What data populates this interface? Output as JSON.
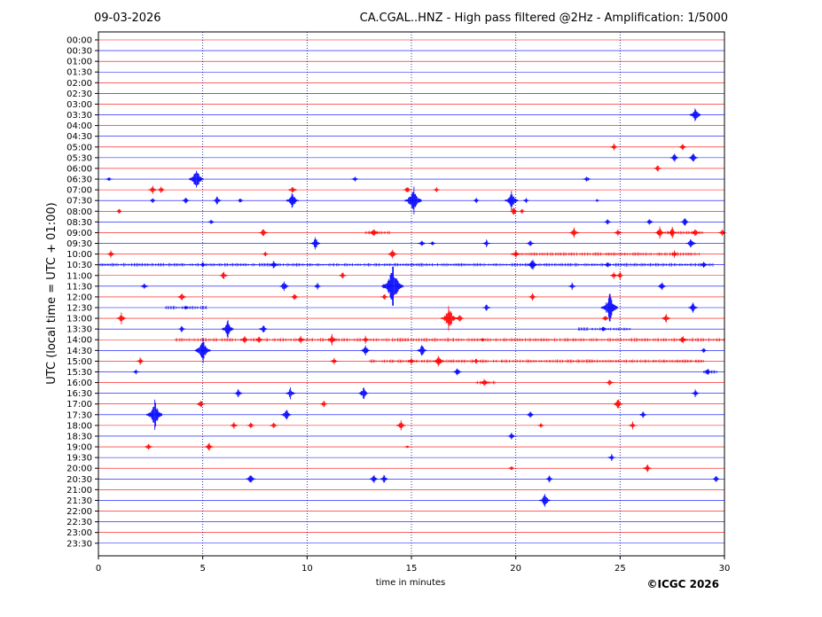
{
  "header": {
    "date": "09-03-2026",
    "title": "CA.CGAL..HNZ - High pass filtered @2Hz - Amplification: 1/5000"
  },
  "footer": {
    "copyright": "©ICGC 2026"
  },
  "colors": {
    "trace_a": "#ff0000",
    "trace_b": "#0000ff",
    "grid": "#000080",
    "axis": "#000000"
  },
  "chart_data": {
    "type": "line",
    "chart_kind": "helicorder",
    "xlabel": "time in minutes",
    "ylabel": "UTC (local time = UTC + 01:00)",
    "xlim": [
      0,
      30
    ],
    "xticks": [
      0,
      5,
      10,
      15,
      20,
      25,
      30
    ],
    "vertical_grid_minutes": [
      5,
      10,
      15,
      20,
      25
    ],
    "grid": true,
    "row_labels": [
      "00:00",
      "00:30",
      "01:00",
      "01:30",
      "02:00",
      "02:30",
      "03:00",
      "03:30",
      "04:00",
      "04:30",
      "05:00",
      "05:30",
      "06:00",
      "06:30",
      "07:00",
      "07:30",
      "08:00",
      "08:30",
      "09:00",
      "09:30",
      "10:00",
      "10:30",
      "11:00",
      "11:30",
      "12:00",
      "12:30",
      "13:00",
      "13:30",
      "14:00",
      "14:30",
      "15:00",
      "15:30",
      "16:00",
      "16:30",
      "17:00",
      "17:30",
      "18:00",
      "18:30",
      "19:00",
      "19:30",
      "20:00",
      "20:30",
      "21:00",
      "21:30",
      "22:00",
      "22:30",
      "23:00",
      "23:30"
    ],
    "row_colors": [
      "red",
      "blue"
    ],
    "events": [
      {
        "row": "03:30",
        "minute": 28.6,
        "amplitude": 0.9
      },
      {
        "row": "05:00",
        "minute": 24.7,
        "amplitude": 0.4
      },
      {
        "row": "05:00",
        "minute": 28.0,
        "amplitude": 0.4
      },
      {
        "row": "05:30",
        "minute": 27.6,
        "amplitude": 0.5
      },
      {
        "row": "05:30",
        "minute": 28.5,
        "amplitude": 0.6
      },
      {
        "row": "06:00",
        "minute": 26.8,
        "amplitude": 0.4
      },
      {
        "row": "06:30",
        "minute": 0.5,
        "amplitude": 0.3
      },
      {
        "row": "06:30",
        "minute": 4.7,
        "amplitude": 1.3
      },
      {
        "row": "06:30",
        "minute": 12.3,
        "amplitude": 0.3
      },
      {
        "row": "06:30",
        "minute": 23.4,
        "amplitude": 0.4
      },
      {
        "row": "07:00",
        "minute": 2.6,
        "amplitude": 0.5
      },
      {
        "row": "07:00",
        "minute": 3.0,
        "amplitude": 0.4
      },
      {
        "row": "07:00",
        "minute": 9.3,
        "amplitude": 0.5
      },
      {
        "row": "07:00",
        "minute": 14.8,
        "amplitude": 0.4
      },
      {
        "row": "07:00",
        "minute": 16.2,
        "amplitude": 0.3
      },
      {
        "row": "07:30",
        "minute": 2.6,
        "amplitude": 0.3
      },
      {
        "row": "07:30",
        "minute": 4.2,
        "amplitude": 0.4
      },
      {
        "row": "07:30",
        "minute": 5.7,
        "amplitude": 0.5
      },
      {
        "row": "07:30",
        "minute": 6.8,
        "amplitude": 0.3
      },
      {
        "row": "07:30",
        "minute": 9.3,
        "amplitude": 1.0
      },
      {
        "row": "07:30",
        "minute": 15.1,
        "amplitude": 1.6
      },
      {
        "row": "07:30",
        "minute": 18.1,
        "amplitude": 0.3
      },
      {
        "row": "07:30",
        "minute": 19.8,
        "amplitude": 1.1
      },
      {
        "row": "07:30",
        "minute": 20.5,
        "amplitude": 0.3
      },
      {
        "row": "07:30",
        "minute": 23.9,
        "amplitude": 0.2
      },
      {
        "row": "08:00",
        "minute": 1.0,
        "amplitude": 0.3
      },
      {
        "row": "08:00",
        "minute": 19.9,
        "amplitude": 0.5
      },
      {
        "row": "08:00",
        "minute": 20.3,
        "amplitude": 0.3
      },
      {
        "row": "08:30",
        "minute": 5.4,
        "amplitude": 0.3
      },
      {
        "row": "08:30",
        "minute": 24.4,
        "amplitude": 0.4
      },
      {
        "row": "08:30",
        "minute": 26.4,
        "amplitude": 0.4
      },
      {
        "row": "08:30",
        "minute": 28.1,
        "amplitude": 0.5
      },
      {
        "row": "09:00",
        "minute": 7.9,
        "amplitude": 0.5
      },
      {
        "row": "09:00",
        "minute": 13.2,
        "amplitude": 0.5
      },
      {
        "row": "09:00",
        "minute": 22.8,
        "amplitude": 0.6
      },
      {
        "row": "09:00",
        "minute": 24.9,
        "amplitude": 0.4
      },
      {
        "row": "09:00",
        "minute": 26.9,
        "amplitude": 0.6
      },
      {
        "row": "09:00",
        "minute": 27.5,
        "amplitude": 0.6
      },
      {
        "row": "09:00",
        "minute": 28.6,
        "amplitude": 0.5
      },
      {
        "row": "09:00",
        "minute": 29.9,
        "amplitude": 0.4
      },
      {
        "row": "09:30",
        "minute": 10.4,
        "amplitude": 0.7
      },
      {
        "row": "09:30",
        "minute": 15.5,
        "amplitude": 0.4
      },
      {
        "row": "09:30",
        "minute": 16.0,
        "amplitude": 0.3
      },
      {
        "row": "09:30",
        "minute": 18.6,
        "amplitude": 0.4
      },
      {
        "row": "09:30",
        "minute": 20.7,
        "amplitude": 0.4
      },
      {
        "row": "09:30",
        "minute": 28.4,
        "amplitude": 0.6
      },
      {
        "row": "10:00",
        "minute": 0.6,
        "amplitude": 0.4
      },
      {
        "row": "10:00",
        "minute": 8.0,
        "amplitude": 0.3
      },
      {
        "row": "10:00",
        "minute": 14.1,
        "amplitude": 0.6
      },
      {
        "row": "10:00",
        "minute": 20.0,
        "amplitude": 0.5
      },
      {
        "row": "10:00",
        "minute": 27.6,
        "amplitude": 0.4
      },
      {
        "row": "10:30",
        "minute": 5.0,
        "amplitude": 0.3
      },
      {
        "row": "10:30",
        "minute": 8.4,
        "amplitude": 0.5
      },
      {
        "row": "10:30",
        "minute": 20.8,
        "amplitude": 0.7
      },
      {
        "row": "10:30",
        "minute": 24.4,
        "amplitude": 0.4
      },
      {
        "row": "10:30",
        "minute": 29.0,
        "amplitude": 0.4
      },
      {
        "row": "11:00",
        "minute": 6.0,
        "amplitude": 0.5
      },
      {
        "row": "11:00",
        "minute": 11.7,
        "amplitude": 0.4
      },
      {
        "row": "11:00",
        "minute": 24.7,
        "amplitude": 0.4
      },
      {
        "row": "11:00",
        "minute": 25.0,
        "amplitude": 0.4
      },
      {
        "row": "11:30",
        "minute": 2.2,
        "amplitude": 0.4
      },
      {
        "row": "11:30",
        "minute": 8.9,
        "amplitude": 0.6
      },
      {
        "row": "11:30",
        "minute": 10.5,
        "amplitude": 0.4
      },
      {
        "row": "11:30",
        "minute": 14.1,
        "amplitude": 2.2
      },
      {
        "row": "11:30",
        "minute": 22.7,
        "amplitude": 0.4
      },
      {
        "row": "11:30",
        "minute": 27.0,
        "amplitude": 0.5
      },
      {
        "row": "12:00",
        "minute": 4.0,
        "amplitude": 0.5
      },
      {
        "row": "12:00",
        "minute": 9.4,
        "amplitude": 0.4
      },
      {
        "row": "12:00",
        "minute": 13.7,
        "amplitude": 0.4
      },
      {
        "row": "12:00",
        "minute": 20.8,
        "amplitude": 0.4
      },
      {
        "row": "12:30",
        "minute": 4.2,
        "amplitude": 0.3
      },
      {
        "row": "12:30",
        "minute": 18.6,
        "amplitude": 0.4
      },
      {
        "row": "12:30",
        "minute": 24.5,
        "amplitude": 1.6
      },
      {
        "row": "12:30",
        "minute": 28.5,
        "amplitude": 0.6
      },
      {
        "row": "13:00",
        "minute": 1.1,
        "amplitude": 0.6
      },
      {
        "row": "13:00",
        "minute": 16.8,
        "amplitude": 1.4
      },
      {
        "row": "13:00",
        "minute": 17.3,
        "amplitude": 0.5
      },
      {
        "row": "13:00",
        "minute": 24.3,
        "amplitude": 0.4
      },
      {
        "row": "13:00",
        "minute": 27.2,
        "amplitude": 0.5
      },
      {
        "row": "13:30",
        "minute": 4.0,
        "amplitude": 0.4
      },
      {
        "row": "13:30",
        "minute": 6.2,
        "amplitude": 1.0
      },
      {
        "row": "13:30",
        "minute": 7.9,
        "amplitude": 0.5
      },
      {
        "row": "13:30",
        "minute": 24.2,
        "amplitude": 0.3
      },
      {
        "row": "14:00",
        "minute": 7.0,
        "amplitude": 0.5
      },
      {
        "row": "14:00",
        "minute": 7.7,
        "amplitude": 0.4
      },
      {
        "row": "14:00",
        "minute": 9.7,
        "amplitude": 0.4
      },
      {
        "row": "14:00",
        "minute": 11.2,
        "amplitude": 0.6
      },
      {
        "row": "14:00",
        "minute": 12.8,
        "amplitude": 0.4
      },
      {
        "row": "14:00",
        "minute": 18.4,
        "amplitude": 0.3
      },
      {
        "row": "14:00",
        "minute": 28.0,
        "amplitude": 0.5
      },
      {
        "row": "14:30",
        "minute": 5.0,
        "amplitude": 1.4
      },
      {
        "row": "14:30",
        "minute": 12.8,
        "amplitude": 0.6
      },
      {
        "row": "14:30",
        "minute": 15.5,
        "amplitude": 0.7
      },
      {
        "row": "14:30",
        "minute": 29.0,
        "amplitude": 0.3
      },
      {
        "row": "15:00",
        "minute": 2.0,
        "amplitude": 0.4
      },
      {
        "row": "15:00",
        "minute": 11.3,
        "amplitude": 0.4
      },
      {
        "row": "15:00",
        "minute": 15.0,
        "amplitude": 0.4
      },
      {
        "row": "15:00",
        "minute": 16.3,
        "amplitude": 0.7
      },
      {
        "row": "15:00",
        "minute": 18.1,
        "amplitude": 0.3
      },
      {
        "row": "15:30",
        "minute": 1.8,
        "amplitude": 0.3
      },
      {
        "row": "15:30",
        "minute": 17.2,
        "amplitude": 0.5
      },
      {
        "row": "15:30",
        "minute": 29.2,
        "amplitude": 0.4
      },
      {
        "row": "16:00",
        "minute": 18.5,
        "amplitude": 0.5
      },
      {
        "row": "16:00",
        "minute": 24.5,
        "amplitude": 0.4
      },
      {
        "row": "16:30",
        "minute": 6.7,
        "amplitude": 0.5
      },
      {
        "row": "16:30",
        "minute": 9.2,
        "amplitude": 0.6
      },
      {
        "row": "16:30",
        "minute": 12.7,
        "amplitude": 0.7
      },
      {
        "row": "16:30",
        "minute": 28.6,
        "amplitude": 0.4
      },
      {
        "row": "17:00",
        "minute": 4.9,
        "amplitude": 0.5
      },
      {
        "row": "17:00",
        "minute": 10.8,
        "amplitude": 0.4
      },
      {
        "row": "17:00",
        "minute": 24.9,
        "amplitude": 0.6
      },
      {
        "row": "17:30",
        "minute": 2.7,
        "amplitude": 1.5
      },
      {
        "row": "17:30",
        "minute": 9.0,
        "amplitude": 0.7
      },
      {
        "row": "17:30",
        "minute": 20.7,
        "amplitude": 0.4
      },
      {
        "row": "17:30",
        "minute": 26.1,
        "amplitude": 0.4
      },
      {
        "row": "18:00",
        "minute": 6.5,
        "amplitude": 0.4
      },
      {
        "row": "18:00",
        "minute": 7.3,
        "amplitude": 0.4
      },
      {
        "row": "18:00",
        "minute": 8.4,
        "amplitude": 0.4
      },
      {
        "row": "18:00",
        "minute": 14.5,
        "amplitude": 0.6
      },
      {
        "row": "18:00",
        "minute": 21.2,
        "amplitude": 0.3
      },
      {
        "row": "18:00",
        "minute": 25.6,
        "amplitude": 0.4
      },
      {
        "row": "18:30",
        "minute": 19.8,
        "amplitude": 0.4
      },
      {
        "row": "19:00",
        "minute": 2.4,
        "amplitude": 0.4
      },
      {
        "row": "19:00",
        "minute": 5.3,
        "amplitude": 0.5
      },
      {
        "row": "19:00",
        "minute": 14.8,
        "amplitude": 0.2
      },
      {
        "row": "19:30",
        "minute": 24.6,
        "amplitude": 0.4
      },
      {
        "row": "20:00",
        "minute": 19.8,
        "amplitude": 0.3
      },
      {
        "row": "20:00",
        "minute": 26.3,
        "amplitude": 0.5
      },
      {
        "row": "20:30",
        "minute": 7.3,
        "amplitude": 0.6
      },
      {
        "row": "20:30",
        "minute": 13.2,
        "amplitude": 0.5
      },
      {
        "row": "20:30",
        "minute": 13.7,
        "amplitude": 0.5
      },
      {
        "row": "20:30",
        "minute": 21.6,
        "amplitude": 0.4
      },
      {
        "row": "20:30",
        "minute": 29.6,
        "amplitude": 0.4
      },
      {
        "row": "21:30",
        "minute": 21.4,
        "amplitude": 0.8
      }
    ],
    "noise_bands": [
      {
        "row": "09:00",
        "from": 12.8,
        "to": 14.0
      },
      {
        "row": "09:00",
        "from": 26.8,
        "to": 29.0
      },
      {
        "row": "10:00",
        "from": 19.8,
        "to": 28.8
      },
      {
        "row": "10:30",
        "from": 0.0,
        "to": 29.5
      },
      {
        "row": "12:30",
        "from": 3.2,
        "to": 5.2
      },
      {
        "row": "13:30",
        "from": 23.0,
        "to": 25.5
      },
      {
        "row": "14:00",
        "from": 3.7,
        "to": 30.0
      },
      {
        "row": "15:00",
        "from": 13.0,
        "to": 29.0
      },
      {
        "row": "15:30",
        "from": 29.0,
        "to": 29.7
      },
      {
        "row": "16:00",
        "from": 18.1,
        "to": 19.0
      }
    ]
  }
}
